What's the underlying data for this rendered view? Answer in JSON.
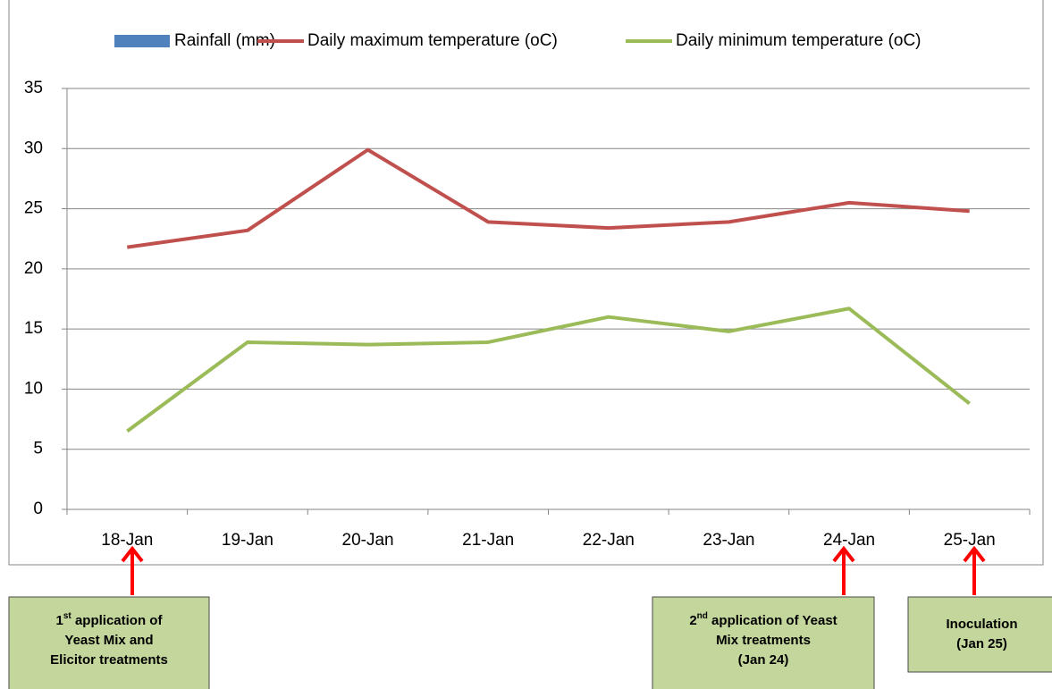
{
  "chart_data": {
    "type": "line",
    "categories": [
      "18-Jan",
      "19-Jan",
      "20-Jan",
      "21-Jan",
      "22-Jan",
      "23-Jan",
      "24-Jan",
      "25-Jan"
    ],
    "series": [
      {
        "name": "Rainfall (mm)",
        "type": "bar",
        "color": "#4f81bd",
        "values": [
          0,
          0,
          0,
          0,
          0,
          0,
          0,
          0
        ]
      },
      {
        "name": "Daily maximum temperature (oC)",
        "type": "line",
        "color": "#c0504d",
        "values": [
          21.8,
          23.2,
          29.9,
          23.9,
          23.4,
          23.9,
          25.5,
          24.8
        ]
      },
      {
        "name": "Daily minimum temperature (oC)",
        "type": "line",
        "color": "#9bbb59",
        "values": [
          6.5,
          13.9,
          13.7,
          13.9,
          16.0,
          14.8,
          16.7,
          8.8
        ]
      }
    ],
    "ylim": [
      0,
      35
    ],
    "yticks": [
      0,
      5,
      10,
      15,
      20,
      25,
      30,
      35
    ],
    "grid": true,
    "legend": "top",
    "annotations": [
      {
        "ordinal": "1",
        "suffix": "st",
        "lines": [
          " application of",
          "Yeast Mix and",
          "Elicitor treatments"
        ]
      },
      {
        "ordinal": "2",
        "suffix": "nd",
        "lines": [
          " application of Yeast",
          "Mix treatments",
          "(Jan 24)"
        ]
      },
      {
        "lines": [
          "Inoculation",
          "(Jan 25)"
        ]
      }
    ]
  }
}
